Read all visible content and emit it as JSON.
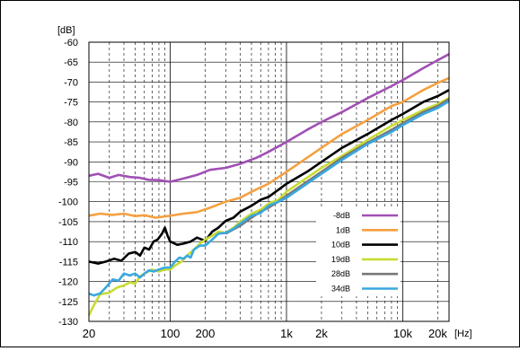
{
  "chart_data": {
    "type": "line",
    "title": "",
    "ylabel": "[dB]",
    "xlabel": "[Hz]",
    "xscale": "log",
    "xlim": [
      20,
      25000
    ],
    "ylim": [
      -130,
      -60
    ],
    "grid": true,
    "legend_position": "inside-right",
    "y_ticks": [
      -60,
      -65,
      -70,
      -75,
      -80,
      -85,
      -90,
      -95,
      -100,
      -105,
      -110,
      -115,
      -120,
      -125,
      -130
    ],
    "x_ticks": [
      {
        "value": 20,
        "label": "20"
      },
      {
        "value": 100,
        "label": "100"
      },
      {
        "value": 200,
        "label": "200"
      },
      {
        "value": 1000,
        "label": "1k"
      },
      {
        "value": 2000,
        "label": "2k"
      },
      {
        "value": 10000,
        "label": "10k"
      },
      {
        "value": 20000,
        "label": "20k"
      }
    ],
    "series": [
      {
        "name": "-8dB",
        "color": "#a050b4",
        "points": [
          [
            20,
            -93.5
          ],
          [
            24,
            -93
          ],
          [
            30,
            -94
          ],
          [
            36,
            -93.3
          ],
          [
            45,
            -93.8
          ],
          [
            55,
            -94
          ],
          [
            65,
            -94.5
          ],
          [
            80,
            -94.6
          ],
          [
            100,
            -95
          ],
          [
            130,
            -94.2
          ],
          [
            170,
            -93.3
          ],
          [
            220,
            -92
          ],
          [
            300,
            -91.5
          ],
          [
            400,
            -90.5
          ],
          [
            550,
            -89
          ],
          [
            700,
            -87.5
          ],
          [
            1000,
            -85
          ],
          [
            1500,
            -82
          ],
          [
            2000,
            -80
          ],
          [
            3000,
            -77.5
          ],
          [
            5000,
            -74
          ],
          [
            8000,
            -71
          ],
          [
            10000,
            -69.5
          ],
          [
            15000,
            -66.5
          ],
          [
            20000,
            -64.5
          ],
          [
            25000,
            -63
          ]
        ]
      },
      {
        "name": "1dB",
        "color": "#f5a040",
        "points": [
          [
            20,
            -103.5
          ],
          [
            25,
            -103
          ],
          [
            32,
            -103.3
          ],
          [
            40,
            -103
          ],
          [
            50,
            -103.6
          ],
          [
            60,
            -103.4
          ],
          [
            75,
            -104
          ],
          [
            100,
            -103.5
          ],
          [
            130,
            -103
          ],
          [
            170,
            -102.6
          ],
          [
            220,
            -101.5
          ],
          [
            300,
            -100
          ],
          [
            400,
            -99
          ],
          [
            500,
            -97.5
          ],
          [
            700,
            -95.5
          ],
          [
            1000,
            -92.5
          ],
          [
            1500,
            -89
          ],
          [
            2000,
            -86.5
          ],
          [
            3000,
            -83
          ],
          [
            5000,
            -79.5
          ],
          [
            8000,
            -76
          ],
          [
            10000,
            -75
          ],
          [
            15000,
            -72
          ],
          [
            20000,
            -70.2
          ],
          [
            25000,
            -69
          ]
        ]
      },
      {
        "name": "10dB",
        "color": "#000000",
        "points": [
          [
            20,
            -115
          ],
          [
            24,
            -115.5
          ],
          [
            28,
            -115
          ],
          [
            33,
            -114.3
          ],
          [
            38,
            -114.8
          ],
          [
            44,
            -113
          ],
          [
            50,
            -112.6
          ],
          [
            55,
            -113.5
          ],
          [
            60,
            -111.5
          ],
          [
            66,
            -112
          ],
          [
            72,
            -110
          ],
          [
            78,
            -109.5
          ],
          [
            85,
            -108
          ],
          [
            90,
            -106.5
          ],
          [
            95,
            -108.5
          ],
          [
            100,
            -110
          ],
          [
            115,
            -110.8
          ],
          [
            130,
            -110.5
          ],
          [
            150,
            -110
          ],
          [
            170,
            -109
          ],
          [
            200,
            -109.8
          ],
          [
            230,
            -107.5
          ],
          [
            260,
            -106.5
          ],
          [
            300,
            -104.8
          ],
          [
            350,
            -104
          ],
          [
            400,
            -102.5
          ],
          [
            500,
            -101
          ],
          [
            600,
            -99.5
          ],
          [
            700,
            -98.8
          ],
          [
            850,
            -97
          ],
          [
            1000,
            -95.5
          ],
          [
            1500,
            -92.5
          ],
          [
            2000,
            -90
          ],
          [
            3000,
            -86.5
          ],
          [
            5000,
            -83
          ],
          [
            8000,
            -79.5
          ],
          [
            10000,
            -78
          ],
          [
            15000,
            -75
          ],
          [
            20000,
            -73.5
          ],
          [
            25000,
            -72
          ]
        ]
      },
      {
        "name": "19dB",
        "color": "#c8dc32",
        "points": [
          [
            20,
            -128.5
          ],
          [
            22,
            -126
          ],
          [
            25,
            -123.2
          ],
          [
            30,
            -122.8
          ],
          [
            35,
            -121.5
          ],
          [
            40,
            -121
          ],
          [
            45,
            -120.2
          ],
          [
            50,
            -120.5
          ],
          [
            55,
            -118.7
          ],
          [
            60,
            -118
          ],
          [
            65,
            -117.5
          ],
          [
            70,
            -117
          ],
          [
            80,
            -117.5
          ],
          [
            90,
            -117
          ],
          [
            100,
            -117
          ],
          [
            110,
            -116
          ],
          [
            125,
            -115
          ],
          [
            140,
            -113.5
          ],
          [
            160,
            -112
          ],
          [
            180,
            -110.5
          ],
          [
            200,
            -109.5
          ],
          [
            230,
            -108.5
          ],
          [
            260,
            -107.5
          ],
          [
            300,
            -107.8
          ],
          [
            350,
            -106.5
          ],
          [
            400,
            -105
          ],
          [
            500,
            -103
          ],
          [
            600,
            -102
          ],
          [
            700,
            -100.5
          ],
          [
            850,
            -99.5
          ],
          [
            1000,
            -97.5
          ],
          [
            1500,
            -94
          ],
          [
            2000,
            -91.5
          ],
          [
            3000,
            -88.5
          ],
          [
            5000,
            -84.5
          ],
          [
            8000,
            -81
          ],
          [
            10000,
            -79.5
          ],
          [
            15000,
            -77
          ],
          [
            20000,
            -75.5
          ],
          [
            25000,
            -74
          ]
        ]
      },
      {
        "name": "28dB",
        "color": "#787878",
        "points": [
          [
            300,
            -108
          ],
          [
            400,
            -106
          ],
          [
            500,
            -104
          ],
          [
            600,
            -102.5
          ],
          [
            700,
            -101.5
          ],
          [
            850,
            -100
          ],
          [
            1000,
            -98.5
          ],
          [
            1500,
            -95
          ],
          [
            2000,
            -92.5
          ],
          [
            3000,
            -89
          ],
          [
            5000,
            -85.2
          ],
          [
            8000,
            -82
          ],
          [
            10000,
            -80.3
          ],
          [
            15000,
            -77.5
          ],
          [
            20000,
            -76
          ],
          [
            25000,
            -74.3
          ]
        ]
      },
      {
        "name": "34dB",
        "color": "#3aa8e0",
        "points": [
          [
            20,
            -123
          ],
          [
            22,
            -123.5
          ],
          [
            25,
            -123
          ],
          [
            28,
            -121.5
          ],
          [
            32,
            -119.5
          ],
          [
            36,
            -119.8
          ],
          [
            40,
            -118
          ],
          [
            45,
            -118.5
          ],
          [
            50,
            -118
          ],
          [
            55,
            -119
          ],
          [
            60,
            -118
          ],
          [
            66,
            -117.2
          ],
          [
            72,
            -117.5
          ],
          [
            80,
            -117
          ],
          [
            90,
            -116.5
          ],
          [
            100,
            -116.5
          ],
          [
            110,
            -115
          ],
          [
            120,
            -114
          ],
          [
            130,
            -114.3
          ],
          [
            140,
            -113.5
          ],
          [
            150,
            -114
          ],
          [
            160,
            -112
          ],
          [
            180,
            -111
          ],
          [
            200,
            -111
          ],
          [
            230,
            -109.5
          ],
          [
            260,
            -108
          ],
          [
            300,
            -107.8
          ],
          [
            350,
            -106.8
          ],
          [
            400,
            -105.5
          ],
          [
            500,
            -103.5
          ],
          [
            600,
            -102.8
          ],
          [
            700,
            -101
          ],
          [
            850,
            -100
          ],
          [
            1000,
            -99
          ],
          [
            1500,
            -95.5
          ],
          [
            2000,
            -93
          ],
          [
            3000,
            -89.5
          ],
          [
            5000,
            -85.5
          ],
          [
            8000,
            -82.5
          ],
          [
            10000,
            -80.8
          ],
          [
            15000,
            -78
          ],
          [
            20000,
            -76.5
          ],
          [
            25000,
            -74.8
          ]
        ]
      }
    ]
  }
}
